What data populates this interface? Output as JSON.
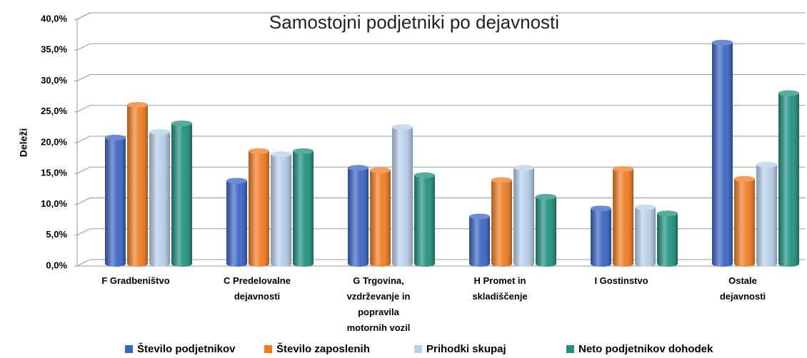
{
  "chart_data": {
    "type": "bar3d",
    "title": "Samostojni podjetniki po dejavnosti",
    "ylabel": "Deleži",
    "categories": [
      "F Gradbeništvo",
      "C Predelovalne dejavnosti",
      "G Trgovina, vzdrževanje in popravila motornih vozil",
      "H Promet in skladiščenje",
      "I Gostinstvo",
      "Ostale dejavnosti"
    ],
    "series": [
      {
        "name": "Število podjetnikov",
        "color": "#3a64c4",
        "values": [
          20.3,
          13.3,
          15.4,
          7.5,
          8.8,
          35.7
        ]
      },
      {
        "name": "Število zaposlenih",
        "color": "#f07b22",
        "values": [
          25.6,
          18.1,
          15.0,
          13.4,
          15.2,
          13.6
        ]
      },
      {
        "name": "Prihodki skupaj",
        "color": "#b8cfea",
        "values": [
          21.2,
          17.6,
          22.0,
          15.4,
          9.0,
          15.9
        ]
      },
      {
        "name": "Neto podjetnikov dohodek",
        "color": "#1f9080",
        "values": [
          22.6,
          18.1,
          14.2,
          10.7,
          8.0,
          27.5
        ]
      }
    ],
    "ylim": [
      0,
      40
    ],
    "yticks": [
      {
        "value": 0,
        "label": "0,0%"
      },
      {
        "value": 5,
        "label": "5,0%"
      },
      {
        "value": 10,
        "label": "10,0%"
      },
      {
        "value": 15,
        "label": "15,0%"
      },
      {
        "value": 20,
        "label": "20,0%"
      },
      {
        "value": 25,
        "label": "25,0%"
      },
      {
        "value": 30,
        "label": "30,0%"
      },
      {
        "value": 35,
        "label": "35,0%"
      },
      {
        "value": 40,
        "label": "40,0%"
      }
    ],
    "grid": true,
    "legend": "bottom"
  }
}
